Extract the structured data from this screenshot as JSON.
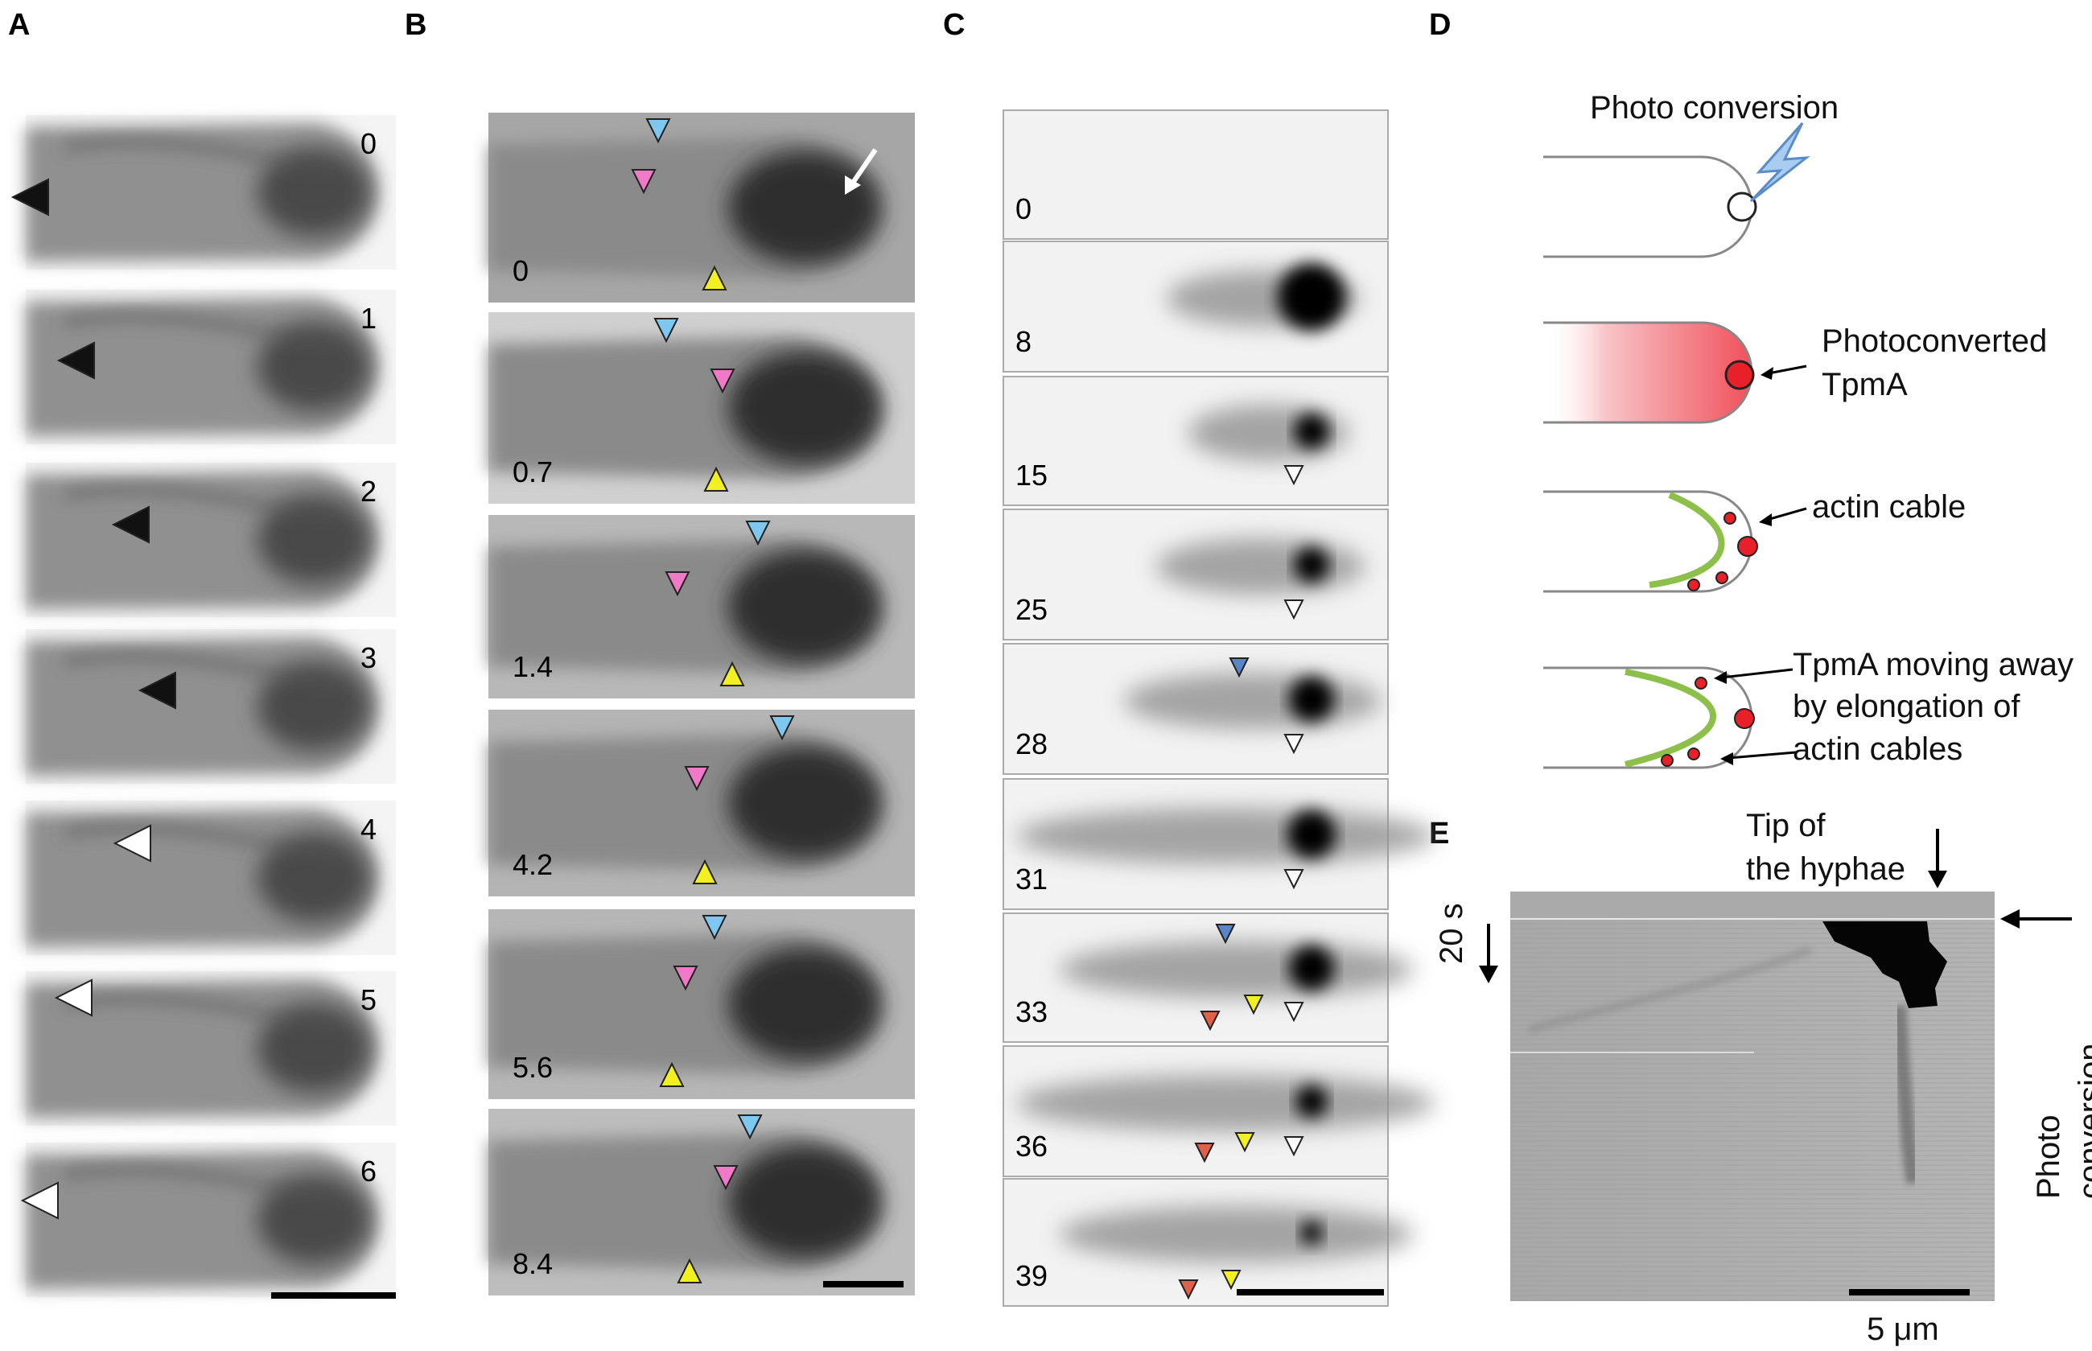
{
  "panels": {
    "A": {
      "label": "A",
      "frames": [
        "0",
        "1",
        "2",
        "3",
        "4",
        "5",
        "6"
      ]
    },
    "B": {
      "label": "B",
      "frames": [
        "0",
        "0.7",
        "1.4",
        "4.2",
        "5.6",
        "8.4"
      ]
    },
    "C": {
      "label": "C",
      "frames": [
        "0",
        "8",
        "15",
        "25",
        "28",
        "31",
        "33",
        "36",
        "39"
      ]
    },
    "D": {
      "label": "D",
      "photo_conversion": "Photo conversion",
      "photoconverted_line1": "Photoconverted",
      "photoconverted_line2": "TpmA",
      "actin_cable": "actin cable",
      "moving_line1": "TpmA moving away",
      "moving_line2": "by elongation of",
      "moving_line3": "actin cables"
    },
    "E": {
      "label": "E",
      "tip_line1": "Tip of",
      "tip_line2": "the hyphae",
      "time_scale": "20 s",
      "photo_conversion": "Photo conversion",
      "scale_bar": "5 μm"
    }
  },
  "colors": {
    "cyan_arrow": "#7ec8f0",
    "pink_arrow": "#f07ac8",
    "yellow_arrow": "#f2f020",
    "blue_arrow": "#5a86c8",
    "red_arrow": "#e0604a",
    "photoconverted_red": "#e8202a",
    "actin_green": "#8cc04a"
  }
}
